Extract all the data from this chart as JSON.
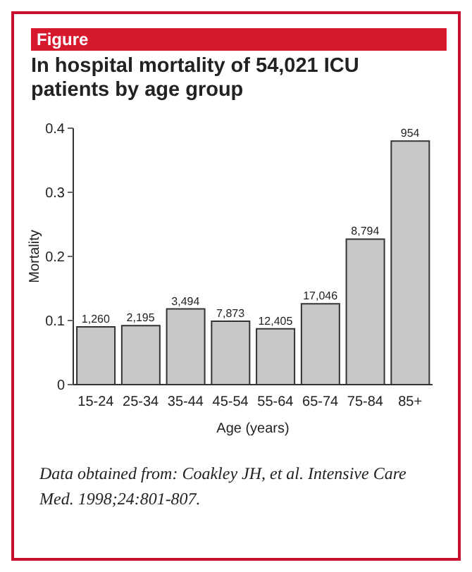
{
  "chart_data": {
    "type": "bar",
    "title": "In hospital mortality of 54,021 ICU patients by age group",
    "xlabel": "Age (years)",
    "ylabel": "Mortality",
    "annotations": [
      "Figure",
      "Data obtained from: Coakley JH, et al. Intensive Care Med. 1998;24:801-807.",
      {
        "text": "1,260",
        "x": "15-24",
        "y": 0.09
      },
      {
        "text": "2,195",
        "x": "25-34",
        "y": 0.092
      },
      {
        "text": "3,494",
        "x": "35-44",
        "y": 0.118
      },
      {
        "text": "7,873",
        "x": "45-54",
        "y": 0.099
      },
      {
        "text": "12,405",
        "x": "55-64",
        "y": 0.087
      },
      {
        "text": "17,046",
        "x": "65-74",
        "y": 0.126
      },
      {
        "text": "8,794",
        "x": "75-84",
        "y": 0.227
      },
      {
        "text": "954",
        "x": "85+",
        "y": 0.38
      }
    ],
    "categories": [
      "15-24",
      "25-34",
      "35-44",
      "45-54",
      "55-64",
      "65-74",
      "75-84",
      "85+"
    ],
    "values": [
      0.09,
      0.092,
      0.118,
      0.099,
      0.087,
      0.126,
      0.227,
      0.38
    ],
    "color": "#c8c8c8",
    "ylim": [
      0,
      0.4
    ],
    "yticks": [
      0,
      0.1,
      0.2,
      0.3,
      0.4
    ],
    "grid": false,
    "legend": false
  }
}
